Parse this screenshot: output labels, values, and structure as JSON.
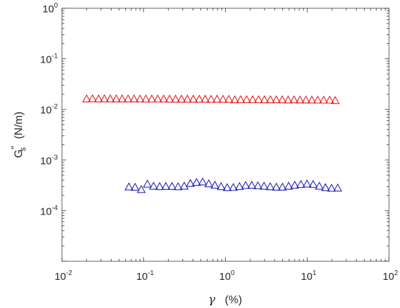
{
  "chart_data": {
    "type": "scatter",
    "title": "",
    "xscale": "log",
    "yscale": "log",
    "xlim": [
      0.01,
      100
    ],
    "ylim": [
      1e-05,
      1
    ],
    "grid": false,
    "legend": "none",
    "xlabel": {
      "symbol": "γ",
      "unit": "(%)"
    },
    "ylabel": {
      "base": "G",
      "prime": "″",
      "sub": "s",
      "unit": "(N/m)"
    },
    "x_ticks": [
      {
        "value": 0.01,
        "base": "10",
        "exp": "-2"
      },
      {
        "value": 0.1,
        "base": "10",
        "exp": "-1"
      },
      {
        "value": 1,
        "base": "10",
        "exp": "0"
      },
      {
        "value": 10,
        "base": "10",
        "exp": "1"
      },
      {
        "value": 100,
        "base": "10",
        "exp": "2"
      }
    ],
    "y_ticks": [
      {
        "value": 1,
        "base": "10",
        "exp": "0"
      },
      {
        "value": 0.1,
        "base": "10",
        "exp": "-1"
      },
      {
        "value": 0.01,
        "base": "10",
        "exp": "-2"
      },
      {
        "value": 0.001,
        "base": "10",
        "exp": "-3"
      },
      {
        "value": 0.0001,
        "base": "10",
        "exp": "-4"
      }
    ],
    "series": [
      {
        "color": "#e8191c",
        "marker": "triangle-open",
        "x": [
          0.02,
          0.0236,
          0.028,
          0.033,
          0.039,
          0.0461,
          0.0545,
          0.0644,
          0.0761,
          0.0899,
          0.1063,
          0.1256,
          0.1484,
          0.1754,
          0.2072,
          0.2449,
          0.2894,
          0.342,
          0.4041,
          0.4776,
          0.5643,
          0.6669,
          0.7881,
          0.9313,
          1.1005,
          1.3005,
          1.5368,
          1.8161,
          2.1461,
          2.536,
          2.9969,
          3.5415,
          4.185,
          4.9455,
          5.8442,
          6.9062,
          8.1611,
          9.6441,
          11.397,
          13.468,
          15.915,
          18.807,
          22.0
        ],
        "y": [
          0.0162,
          0.0163,
          0.0162,
          0.0163,
          0.0162,
          0.0162,
          0.0162,
          0.0162,
          0.0162,
          0.0161,
          0.0161,
          0.0161,
          0.0161,
          0.0161,
          0.016,
          0.016,
          0.016,
          0.016,
          0.016,
          0.016,
          0.016,
          0.0159,
          0.016,
          0.0159,
          0.0159,
          0.0155,
          0.0156,
          0.0156,
          0.0156,
          0.0156,
          0.0155,
          0.0155,
          0.0155,
          0.0155,
          0.0154,
          0.0155,
          0.0154,
          0.0154,
          0.0154,
          0.0153,
          0.0153,
          0.0153,
          0.015
        ]
      },
      {
        "color": "#1f1fb8",
        "marker": "triangle-open",
        "x": [
          0.066,
          0.0785,
          0.0933,
          0.1109,
          0.1318,
          0.1567,
          0.1863,
          0.2215,
          0.2633,
          0.313,
          0.3721,
          0.4423,
          0.5258,
          0.6251,
          0.7431,
          0.8834,
          1.0501,
          1.2483,
          1.484,
          1.7641,
          2.0971,
          2.493,
          2.9636,
          3.5231,
          4.1882,
          4.9788,
          5.9187,
          7.036,
          8.3642,
          9.9431,
          11.82,
          14.051,
          16.704,
          19.857,
          23.6
        ],
        "y": [
          0.000295,
          0.00029,
          0.000262,
          0.000335,
          0.000305,
          0.0003,
          0.000302,
          0.000302,
          0.000298,
          0.000306,
          0.000345,
          0.000362,
          0.00037,
          0.00034,
          0.000318,
          0.0003,
          0.000285,
          0.000288,
          0.0003,
          0.000315,
          0.000318,
          0.00031,
          0.000305,
          0.000298,
          0.000292,
          0.000292,
          0.000305,
          0.000318,
          0.00033,
          0.000338,
          0.00033,
          0.000305,
          0.000285,
          0.000278,
          0.00028
        ]
      }
    ]
  }
}
